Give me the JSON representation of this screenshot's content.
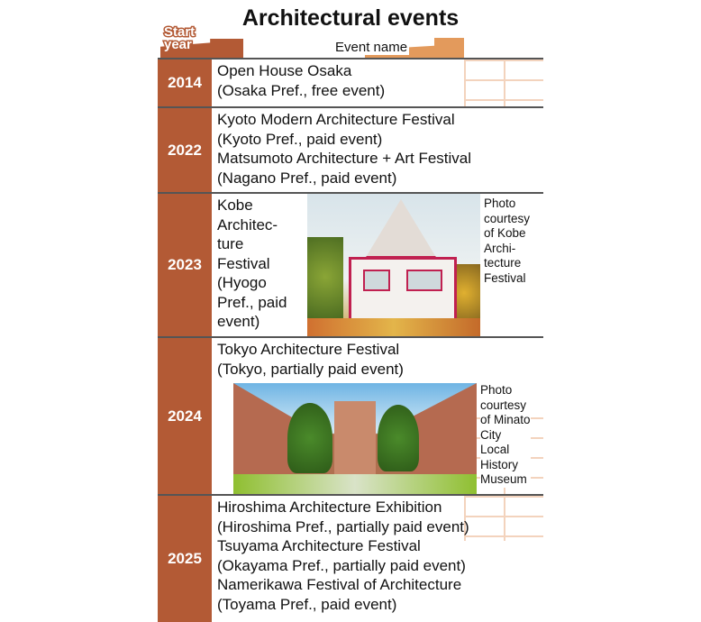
{
  "title": "Architectural events",
  "header": {
    "start_year": "Start year",
    "start_year_l1": "Start",
    "start_year_l2": "year",
    "event_name": "Event name"
  },
  "colors": {
    "year_column": "#b35a35",
    "brick": "#f3d3bd",
    "event_header": "#e39a5c"
  },
  "rows": [
    {
      "year": "2014",
      "events": [
        {
          "name": "Open House Osaka",
          "detail": "(Osaka Pref., free event)"
        }
      ]
    },
    {
      "year": "2022",
      "events": [
        {
          "name": "Kyoto Modern Architecture Festival",
          "detail": "(Kyoto Pref., paid event)"
        },
        {
          "name": "Matsumoto Architecture + Art Festival",
          "detail": "(Nagano Pref., paid event)"
        }
      ]
    },
    {
      "year": "2023",
      "events": [
        {
          "name_lines": [
            "Kobe",
            "Architec-",
            "ture",
            "Festival"
          ],
          "detail_lines": [
            "(Hyogo",
            "Pref., paid",
            "event)"
          ]
        }
      ],
      "photo_credit": [
        "Photo",
        "courtesy",
        "of Kobe",
        "Archi-",
        "tecture",
        "Festival"
      ]
    },
    {
      "year": "2024",
      "events": [
        {
          "name": "Tokyo Architecture Festival",
          "detail": "(Tokyo, partially paid event)"
        }
      ],
      "photo_credit": [
        "Photo",
        "courtesy",
        "of Minato",
        "City",
        "Local",
        "History",
        "Museum"
      ]
    },
    {
      "year": "2025",
      "events": [
        {
          "name": "Hiroshima Architecture Exhibition",
          "detail": "(Hiroshima Pref., partially paid event)"
        },
        {
          "name": "Tsuyama Architecture Festival",
          "detail": "(Okayama Pref., partially paid event)"
        },
        {
          "name": "Namerikawa Festival of Architecture",
          "detail": "(Toyama Pref., paid event)"
        }
      ]
    }
  ]
}
